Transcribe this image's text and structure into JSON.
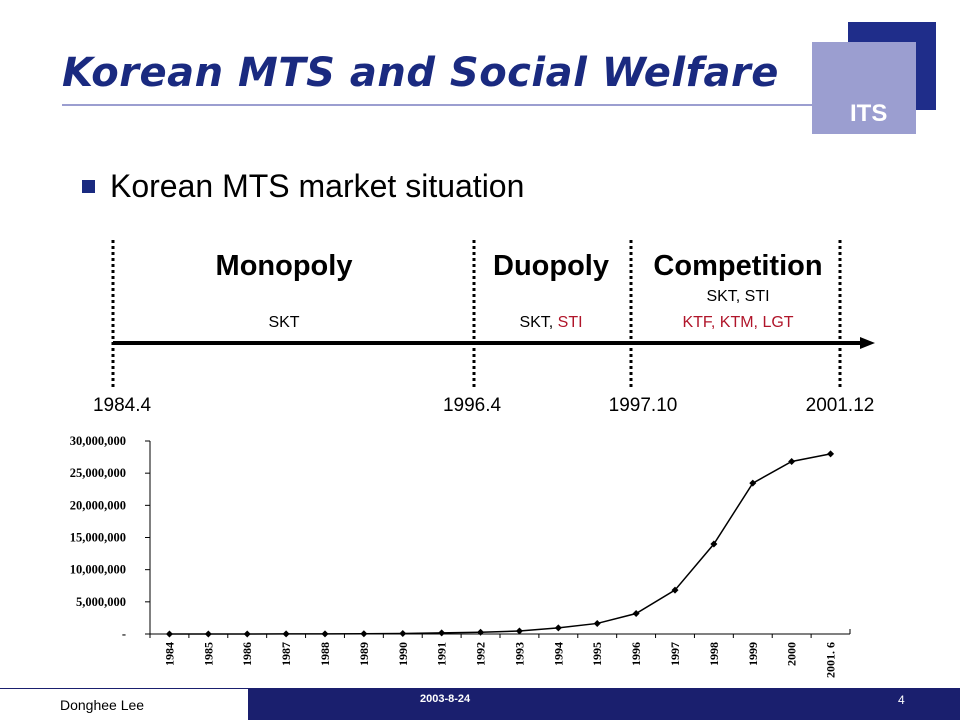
{
  "header": {
    "title": "Korean MTS and Social Welfare",
    "logo_text": "ITS"
  },
  "bullet": "Korean MTS market situation",
  "timeline": {
    "phases": [
      {
        "name": "Monopoly",
        "operators": [
          "SKT"
        ]
      },
      {
        "name": "Duopoly",
        "operators": [
          "SKT, ",
          "STI"
        ]
      },
      {
        "name": "Competition",
        "operators": [
          "SKT, STI",
          "KTF, KTM, LGT"
        ]
      }
    ],
    "dates": [
      "1984.4",
      "1996.4",
      "1997.10",
      "2001.12"
    ],
    "colors": {
      "accent_red": "#b0152a"
    }
  },
  "chart_data": {
    "type": "line",
    "title": "",
    "xlabel": "",
    "ylabel": "",
    "x": [
      "1984",
      "1985",
      "1986",
      "1987",
      "1988",
      "1989",
      "1990",
      "1991",
      "1992",
      "1993",
      "1994",
      "1995",
      "1996",
      "1997",
      "1998",
      "1999",
      "2000",
      "2001. 6"
    ],
    "series": [
      {
        "values": [
          2700,
          4600,
          7100,
          10300,
          20400,
          39700,
          80000,
          166000,
          272000,
          471000,
          961000,
          1641000,
          3181000,
          6828000,
          13983000,
          23443000,
          26816000,
          28000000
        ]
      }
    ],
    "yticks": [
      0,
      5000000,
      10000000,
      15000000,
      20000000,
      25000000,
      30000000
    ],
    "ytick_labels": [
      "-",
      "5,000,000",
      "10,000,000",
      "15,000,000",
      "20,000,000",
      "25,000,000",
      "30,000,000"
    ],
    "ylim": [
      0,
      30000000
    ],
    "grid": false,
    "legend": "none",
    "line_color": "#000000"
  },
  "footer": {
    "author": "Donghee Lee",
    "date": "2003-8-24",
    "page": "4"
  }
}
